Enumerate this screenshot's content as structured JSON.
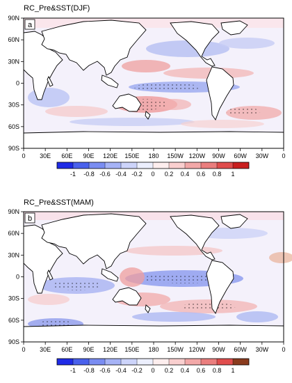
{
  "figure": {
    "panels": [
      {
        "label": "a",
        "title": "RC_Pre&SST(DJF)",
        "colorbar": [
          "-1",
          "-0.8",
          "-0.6",
          "-0.4",
          "-0.2",
          "0",
          "0.2",
          "0.4",
          "0.6",
          "0.8",
          "1"
        ]
      },
      {
        "label": "b",
        "title": "RC_Pre&SST(MAM)",
        "colorbar": [
          "-1",
          "-0.8",
          "-0.6",
          "-0.4",
          "-0.2",
          "0",
          "0.2",
          "0.4",
          "0.6",
          "0.8",
          "1"
        ]
      }
    ],
    "lat_ticks": [
      "90N",
      "60N",
      "30N",
      "0",
      "30S",
      "60S",
      "90S"
    ],
    "lon_ticks": [
      "0",
      "30E",
      "60E",
      "90E",
      "120E",
      "150E",
      "180",
      "150W",
      "120W",
      "90W",
      "60W",
      "30W",
      "0"
    ],
    "colors": {
      "colorbar": [
        "#1f2be6",
        "#4a61ec",
        "#7a8df2",
        "#a6b3f6",
        "#cdd4fa",
        "#eceffd",
        "#fdeeee",
        "#f9cfcf",
        "#f2a8a8",
        "#ea7e7e",
        "#e04d4d",
        "#c91f1f"
      ],
      "colorbar_b_last": "#8a3b1e",
      "ocean_base": "#f4f1fb",
      "land": "#ffffff",
      "coast": "#000000"
    }
  }
}
